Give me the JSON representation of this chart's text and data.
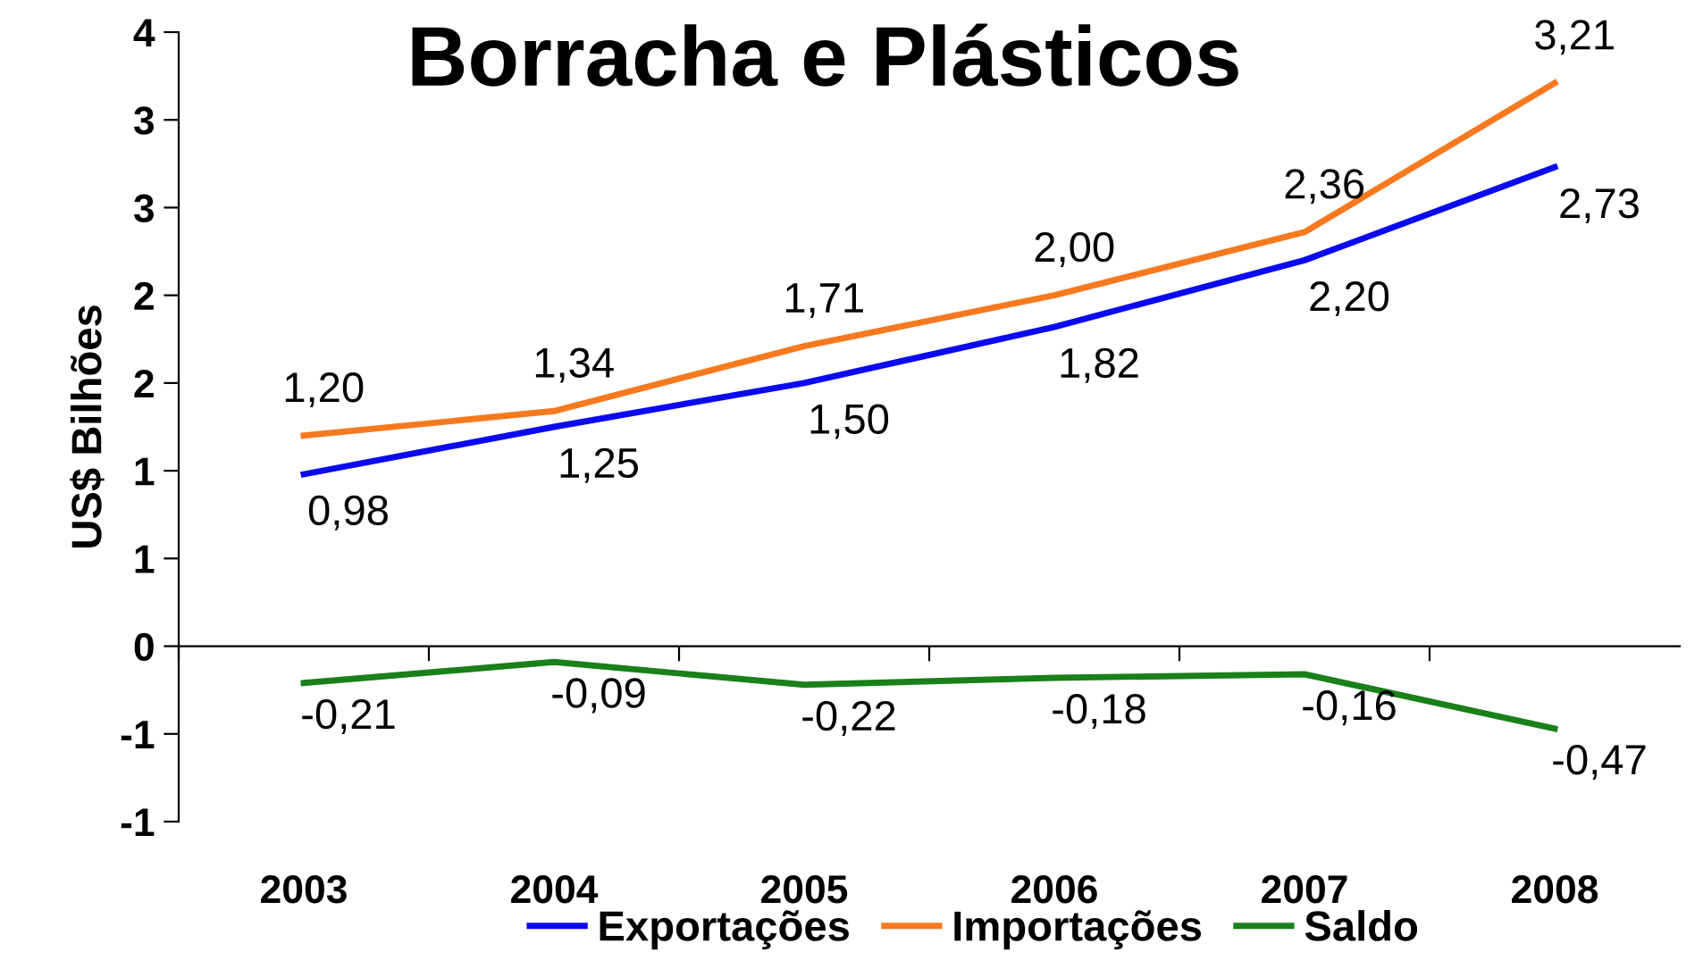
{
  "chart_data": {
    "type": "line",
    "title": "Borracha e Plásticos",
    "ylabel": "US$ Bilhões",
    "categories": [
      "2003",
      "2004",
      "2005",
      "2006",
      "2007",
      "2008"
    ],
    "series": [
      {
        "name": "Exportações",
        "color": "#0a0af0",
        "values": [
          0.98,
          1.25,
          1.5,
          1.82,
          2.2,
          2.73
        ],
        "value_labels": [
          "0,98",
          "1,25",
          "1,50",
          "1,82",
          "2,20",
          "2,73"
        ]
      },
      {
        "name": "Importações",
        "color": "#f7791f",
        "values": [
          1.2,
          1.34,
          1.71,
          2.0,
          2.36,
          3.21
        ],
        "value_labels": [
          "1,20",
          "1,34",
          "1,71",
          "2,00",
          "2,36",
          "3,21"
        ]
      },
      {
        "name": "Saldo",
        "color": "#1a801a",
        "values": [
          -0.21,
          -0.09,
          -0.22,
          -0.18,
          -0.16,
          -0.47
        ],
        "value_labels": [
          "-0,21",
          "-0,09",
          "-0,22",
          "-0,18",
          "-0,16",
          "-0,47"
        ]
      }
    ],
    "ylim": [
      -1,
      3.5
    ],
    "yticks": [
      {
        "value": -1,
        "label": "-1"
      },
      {
        "value": -0.5,
        "label": "-1"
      },
      {
        "value": 0,
        "label": "0"
      },
      {
        "value": 0.5,
        "label": "1"
      },
      {
        "value": 1,
        "label": "1"
      },
      {
        "value": 1.5,
        "label": "2"
      },
      {
        "value": 2,
        "label": "2"
      },
      {
        "value": 2.5,
        "label": "3"
      },
      {
        "value": 3,
        "label": "3"
      },
      {
        "value": 3.5,
        "label": "4"
      }
    ],
    "legend": "bottom",
    "marker": "none",
    "line_style": "solid"
  }
}
